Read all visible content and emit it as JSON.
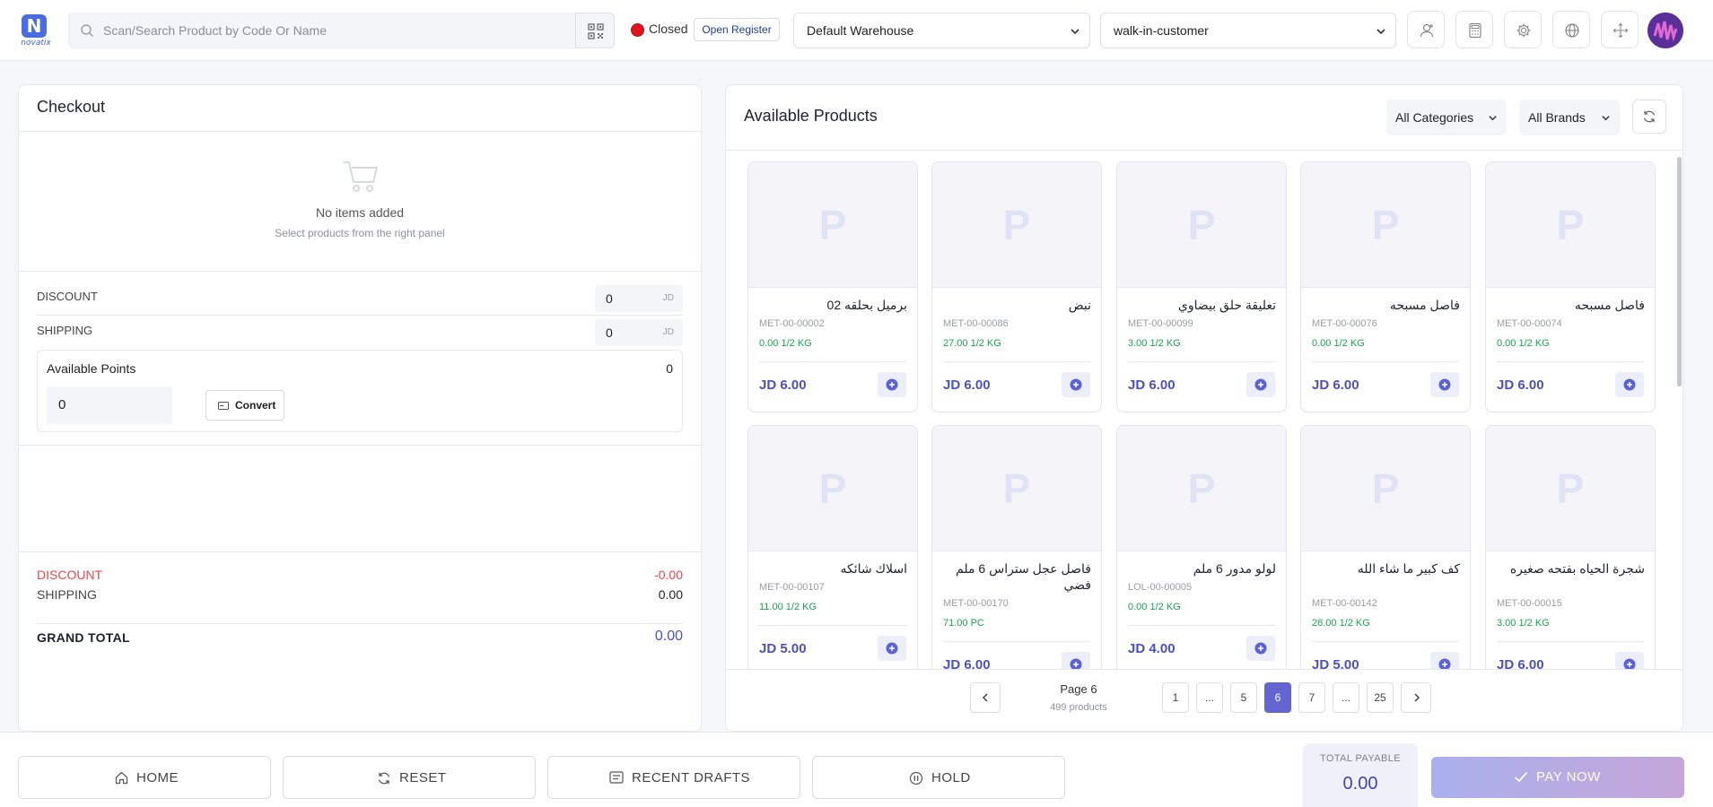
{
  "header": {
    "logo_text": "novatix",
    "logo_mark": "N",
    "search_placeholder": "Scan/Search Product by Code Or Name",
    "register_status": "Closed",
    "open_register_label": "Open Register",
    "warehouse": "Default Warehouse",
    "customer": "walk-in-customer",
    "icons": [
      "user-icon",
      "calculator-icon",
      "gear-icon",
      "globe-icon",
      "fullscreen-icon"
    ]
  },
  "checkout": {
    "title": "Checkout",
    "empty_title": "No items added",
    "empty_subtitle": "Select products from the right panel",
    "discount_label": "DISCOUNT",
    "discount_value": "0",
    "shipping_label": "SHIPPING",
    "shipping_value": "0",
    "currency_unit": "JD",
    "points_label": "Available Points",
    "points_value": "0",
    "points_input": "0",
    "convert_label": "Convert",
    "summary": {
      "discount_label": "DISCOUNT",
      "discount_value": "-0.00",
      "shipping_label": "SHIPPING",
      "shipping_value": "0.00",
      "grand_total_label": "GRAND TOTAL",
      "grand_total_value": "0.00"
    },
    "colors": {
      "discount": "#e5484d",
      "grand_total": "#4a52c4"
    }
  },
  "products": {
    "title": "Available Products",
    "category_filter": "All Categories",
    "brand_filter": "All Brands",
    "placeholder_letter": "P",
    "items": [
      {
        "name": "برميل بحلقه 02",
        "code": "MET-00-00002",
        "stock": "0.00 1/2 KG",
        "price": "JD 6.00"
      },
      {
        "name": "نبض",
        "code": "MET-00-00086",
        "stock": "27.00 1/2 KG",
        "price": "JD 6.00"
      },
      {
        "name": "تعليقة حلق بيضاوي",
        "code": "MET-00-00099",
        "stock": "3.00 1/2 KG",
        "price": "JD 6.00"
      },
      {
        "name": "فاصل مسبحه",
        "code": "MET-00-00076",
        "stock": "0.00 1/2 KG",
        "price": "JD 6.00"
      },
      {
        "name": "فاصل مسبحه",
        "code": "MET-00-00074",
        "stock": "0.00 1/2 KG",
        "price": "JD 6.00"
      },
      {
        "name": "اسلاك شائكه",
        "code": "MET-00-00107",
        "stock": "11.00 1/2 KG",
        "price": "JD 5.00"
      },
      {
        "name": "فاصل عجل ستراس 6 ملم فضي",
        "code": "MET-00-00170",
        "stock": "71.00 PC",
        "price": "JD 6.00"
      },
      {
        "name": "لولو مدور 6 ملم",
        "code": "LOL-00-00005",
        "stock": "0.00 1/2 KG",
        "price": "JD 4.00"
      },
      {
        "name": "كف كبير ما شاء الله",
        "code": "MET-00-00142",
        "stock": "26.00 1/2 KG",
        "price": "JD 5.00"
      },
      {
        "name": "شجرة الحياه بفتحه صغيره",
        "code": "MET-00-00015",
        "stock": "3.00 1/2 KG",
        "price": "JD 6.00"
      }
    ],
    "pagination": {
      "page_label": "Page 6",
      "count_label": "499 products",
      "pages": [
        "1",
        "...",
        "5",
        "6",
        "7",
        "...",
        "25"
      ],
      "active_page": "6"
    }
  },
  "footer": {
    "home_label": "HOME",
    "reset_label": "RESET",
    "drafts_label": "RECENT DRAFTS",
    "hold_label": "HOLD",
    "total_label": "TOTAL PAYABLE",
    "total_value": "0.00",
    "pay_label": "PAY NOW"
  }
}
